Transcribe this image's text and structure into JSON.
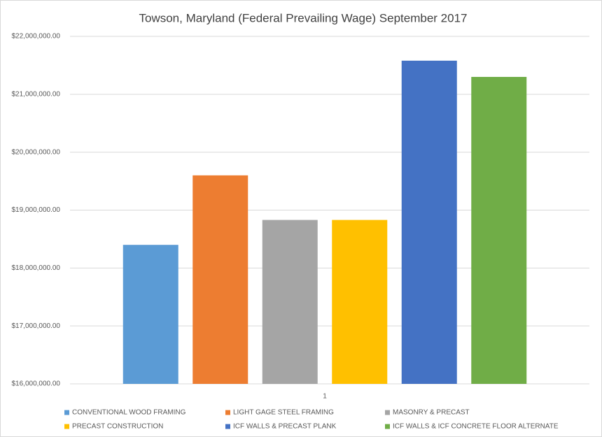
{
  "chart_data": {
    "type": "bar",
    "title": "Towson, Maryland (Federal Prevailing Wage) September 2017",
    "categories": [
      "1"
    ],
    "series": [
      {
        "name": "CONVENTIONAL WOOD FRAMING",
        "color": "#5b9bd5",
        "values": [
          18400000
        ]
      },
      {
        "name": "LIGHT GAGE STEEL FRAMING",
        "color": "#ed7d31",
        "values": [
          19600000
        ]
      },
      {
        "name": "MASONRY & PRECAST",
        "color": "#a5a5a5",
        "values": [
          18830000
        ]
      },
      {
        "name": "PRECAST CONSTRUCTION",
        "color": "#ffc000",
        "values": [
          18830000
        ]
      },
      {
        "name": "ICF WALLS & PRECAST PLANK",
        "color": "#4472c4",
        "values": [
          21580000
        ]
      },
      {
        "name": "ICF WALLS & ICF CONCRETE FLOOR ALTERNATE",
        "color": "#70ad47",
        "values": [
          21300000
        ]
      }
    ],
    "ylim": [
      16000000,
      22000000
    ],
    "yticks": [
      {
        "value": 16000000,
        "label": "$16,000,000.00"
      },
      {
        "value": 17000000,
        "label": "$17,000,000.00"
      },
      {
        "value": 18000000,
        "label": "$18,000,000.00"
      },
      {
        "value": 19000000,
        "label": "$19,000,000.00"
      },
      {
        "value": 20000000,
        "label": "$20,000,000.00"
      },
      {
        "value": 21000000,
        "label": "$21,000,000.00"
      },
      {
        "value": 22000000,
        "label": "$22,000,000.00"
      }
    ],
    "grid": true,
    "legend": "bottom"
  }
}
